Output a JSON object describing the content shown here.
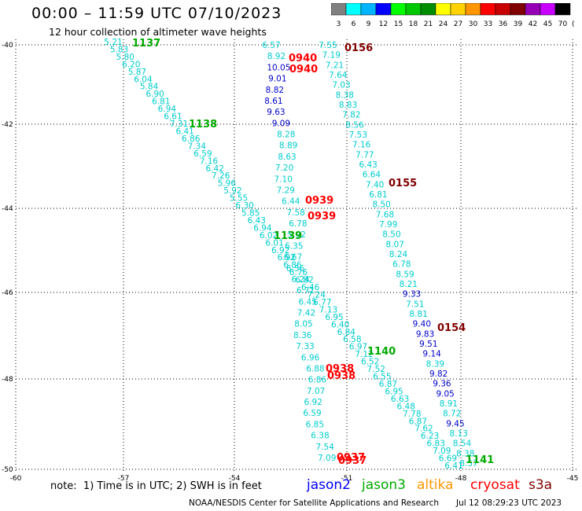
{
  "header": {
    "title": "00:00 – 11:59 UTC 07/10/2023",
    "subtitle": "12 hour collection of altimeter wave heights"
  },
  "legend": {
    "unit": "(ft)",
    "bins": [
      {
        "label": "3",
        "color": "#808080"
      },
      {
        "label": "6",
        "color": "#00ffff"
      },
      {
        "label": "9",
        "color": "#00b4ff"
      },
      {
        "label": "12",
        "color": "#0000ff"
      },
      {
        "label": "15",
        "color": "#00ff00"
      },
      {
        "label": "18",
        "color": "#00c800"
      },
      {
        "label": "21",
        "color": "#008c00"
      },
      {
        "label": "24",
        "color": "#ffff00"
      },
      {
        "label": "27",
        "color": "#ffd200"
      },
      {
        "label": "30",
        "color": "#ff9600"
      },
      {
        "label": "33",
        "color": "#ff0000"
      },
      {
        "label": "36",
        "color": "#c80000"
      },
      {
        "label": "39",
        "color": "#800000"
      },
      {
        "label": "42",
        "color": "#9600b4"
      },
      {
        "label": "45",
        "color": "#c800ff"
      },
      {
        "label": "70",
        "color": "#000000"
      }
    ]
  },
  "axes": {
    "lat_labels": [
      "-40",
      "-42",
      "-44",
      "-46",
      "-48",
      "-50"
    ],
    "lon_labels": [
      "-60",
      "-57",
      "-54",
      "-51",
      "-48",
      "-45"
    ]
  },
  "tracks": [
    {
      "name": "track-1137",
      "time": "1137",
      "time_color": "#00aa00",
      "value_color": "#00cccc",
      "values": [
        "5.21",
        "5.83",
        "5.80",
        "6.20",
        "5.87",
        "6.04",
        "5.84",
        "6.90",
        "6.81",
        "6.94",
        "6.61",
        "7.31",
        "6.41",
        "6.86",
        "7.34",
        "6.59",
        "7.16",
        "6.42",
        "7.26",
        "5.96",
        "5.92",
        "5.55",
        "6.30",
        "5.85",
        "6.43",
        "6.94",
        "6.02",
        "6.01",
        "6.92",
        "6.92",
        "6.86",
        "6.76",
        "6.82",
        "6.46",
        "7.24",
        "6.77",
        "7.13",
        "6.95",
        "6.40",
        "6.84",
        "6.58",
        "6.97",
        "7.12",
        "6.52",
        "7.52",
        "6.55",
        "6.87",
        "6.95",
        "6.63",
        "6.48",
        "7.78",
        "6.87",
        "7.62",
        "6.23",
        "6.83",
        "7.09",
        "6.69",
        "6.41"
      ]
    },
    {
      "name": "track-1138",
      "time": "1138",
      "time_color": "#00aa00",
      "value_color": "#00cccc",
      "values": [
        "6.57",
        "8.92",
        "10.05",
        "9.01",
        "8.82",
        "8.61",
        "9.63",
        "9.09",
        "8.28",
        "8.89",
        "8.63",
        "7.20",
        "7.10",
        "7.29",
        "6.44",
        "7.58",
        "6.78",
        "5.92",
        "6.35",
        "6.67",
        "6.56",
        "6.24",
        "6.71",
        "6.45",
        "7.42",
        "8.05",
        "8.36",
        "7.33",
        "6.96",
        "6.88",
        "6.86",
        "7.07",
        "6.92",
        "6.59",
        "6.85",
        "6.38",
        "7.54",
        "7.09"
      ],
      "blue_values": [
        "10.05",
        "9.01",
        "8.82",
        "8.61",
        "9.63",
        "9.09"
      ]
    },
    {
      "name": "track-0156",
      "time": "0156",
      "time_color": "#800000",
      "value_color": "#00cccc",
      "values": [
        "7.55",
        "7.19",
        "7.21",
        "7.64",
        "7.03",
        "8.38",
        "8.83",
        "7.82",
        "8.56",
        "7.53",
        "7.16",
        "7.77",
        "6.43",
        "6.64",
        "7.40",
        "6.81",
        "8.50",
        "7.68",
        "7.99",
        "8.50",
        "8.07",
        "8.24",
        "6.78",
        "8.59",
        "8.21",
        "9.33",
        "7.51",
        "8.81",
        "9.40",
        "9.83",
        "9.51",
        "9.14",
        "8.39",
        "9.82",
        "9.36",
        "9.05",
        "8.91",
        "8.72",
        "9.45",
        "8.13",
        "8.54",
        "8.38",
        "8.57"
      ],
      "blue_values": [
        "9.33",
        "9.40",
        "9.83",
        "9.51",
        "9.14",
        "9.82",
        "9.36",
        "9.05",
        "9.45"
      ]
    }
  ],
  "track_time_labels": [
    {
      "text": "1137",
      "color": "#00aa00"
    },
    {
      "text": "1138",
      "color": "#00aa00"
    },
    {
      "text": "1139",
      "color": "#00aa00"
    },
    {
      "text": "1140",
      "color": "#00aa00"
    },
    {
      "text": "1141",
      "color": "#00aa00"
    },
    {
      "text": "0156",
      "color": "#800000"
    },
    {
      "text": "0155",
      "color": "#800000"
    },
    {
      "text": "0154",
      "color": "#800000"
    },
    {
      "text": "0940",
      "color": "#ff0000"
    },
    {
      "text": "0940",
      "color": "#ff0000"
    },
    {
      "text": "0939",
      "color": "#ff0000"
    },
    {
      "text": "0939",
      "color": "#ff0000"
    },
    {
      "text": "0938",
      "color": "#ff0000"
    },
    {
      "text": "0938",
      "color": "#ff0000"
    },
    {
      "text": "0937",
      "color": "#ff0000"
    },
    {
      "text": "0937",
      "color": "#ff0000"
    }
  ],
  "note": "note:  1) Time is in UTC; 2) SWH is in feet",
  "satellites": [
    {
      "name": "jason2",
      "color": "#0000ff"
    },
    {
      "name": "jason3",
      "color": "#00aa00"
    },
    {
      "name": "altika",
      "color": "#ff9600"
    },
    {
      "name": "cryosat",
      "color": "#ff0000"
    },
    {
      "name": "s3a",
      "color": "#800000"
    }
  ],
  "footer": {
    "left": "NOAA/NESDIS Center for Satellite Applications and Research",
    "right": "Jul 12 08:29:23 UTC 2023"
  }
}
